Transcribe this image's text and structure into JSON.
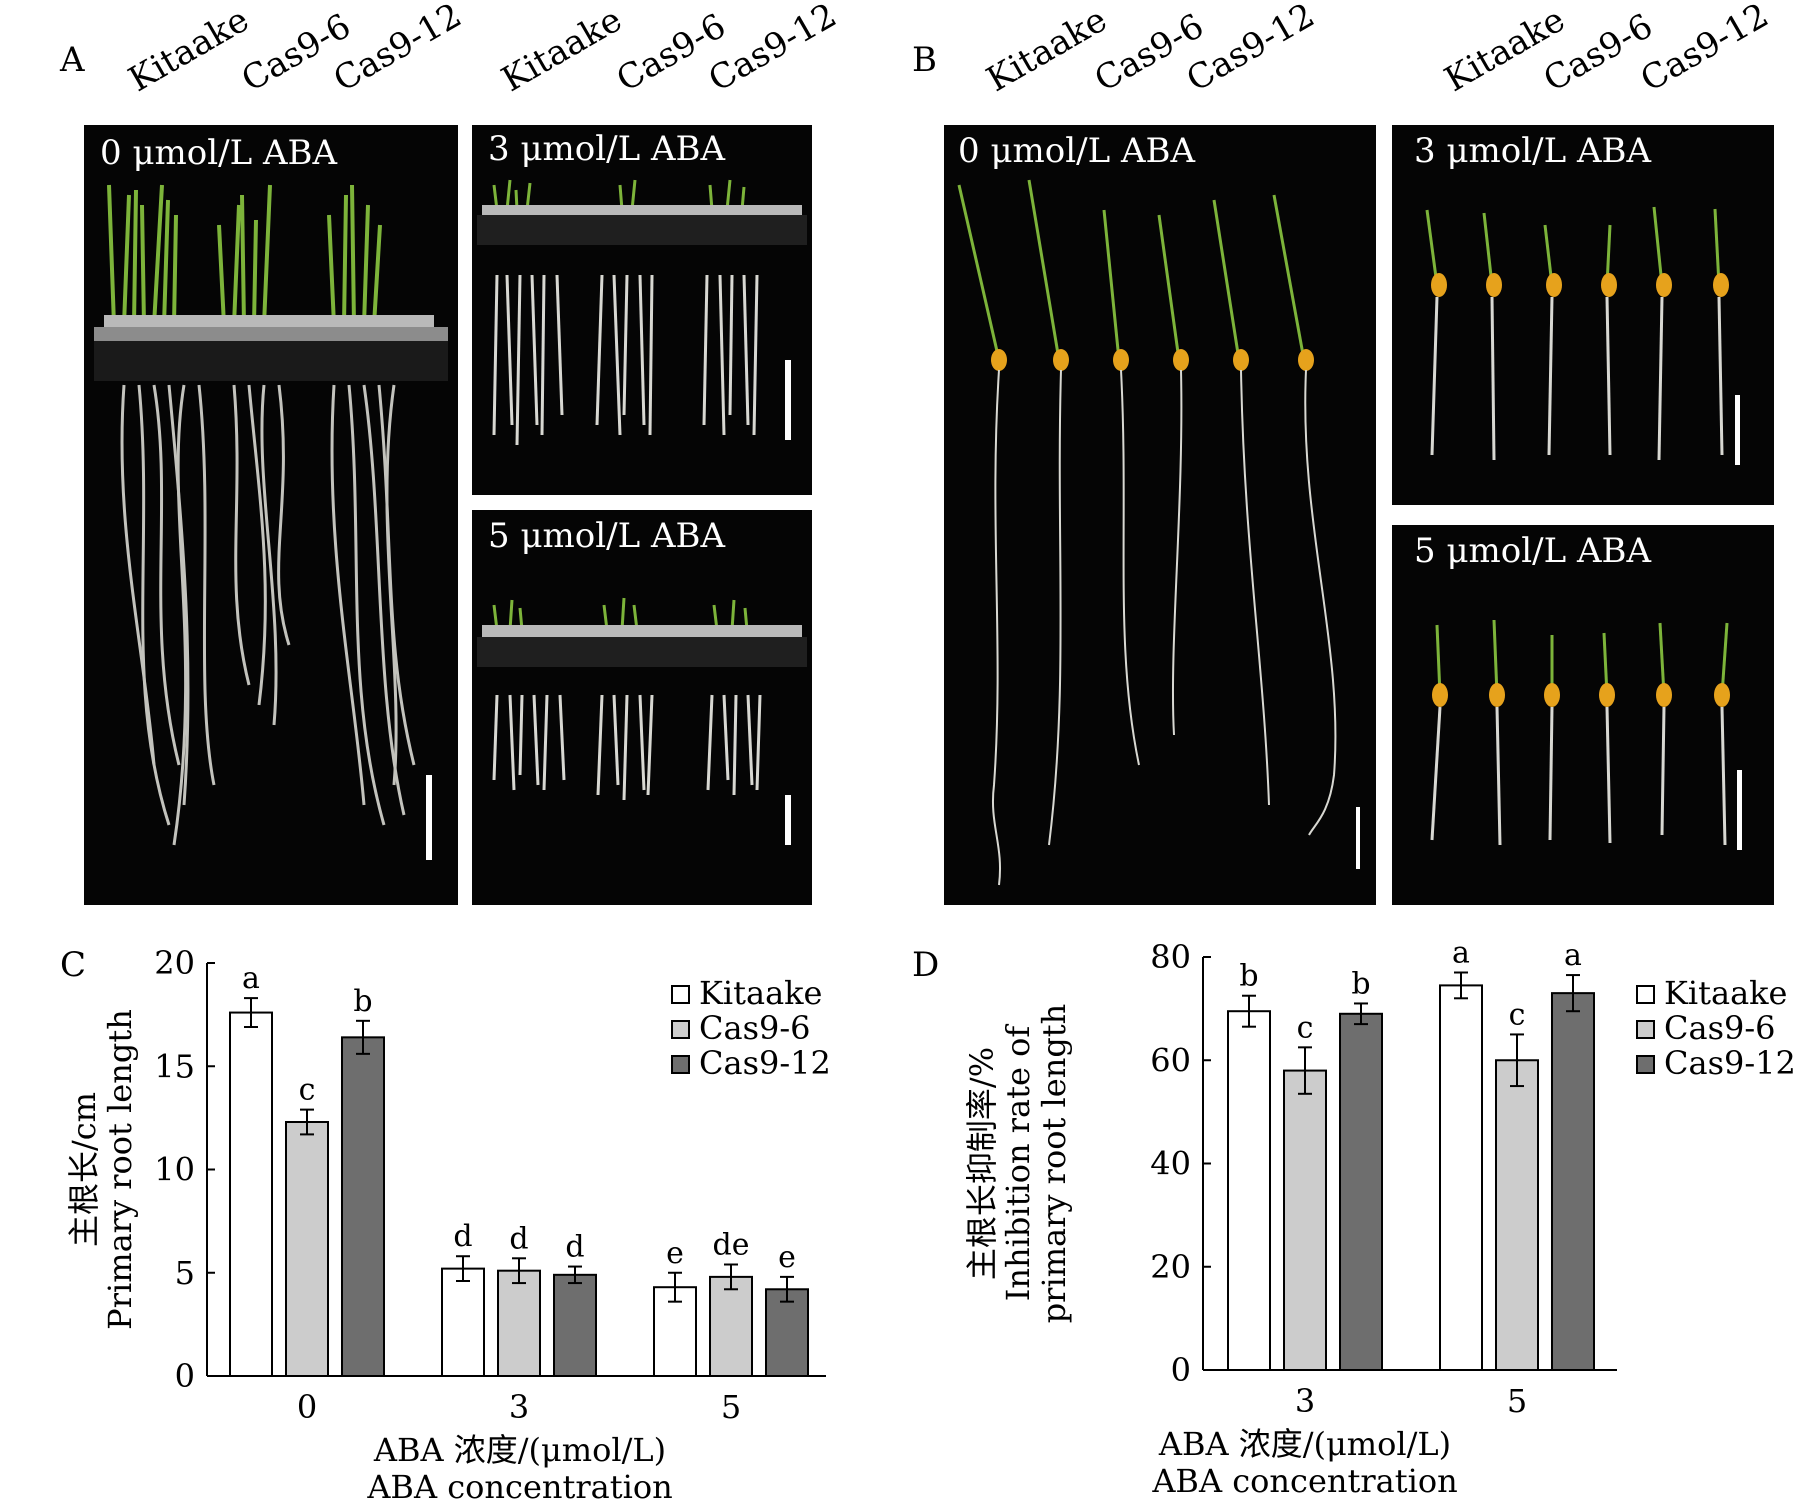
{
  "panels": {
    "A": {
      "label": "A",
      "genotype_labels_left": [
        "Kitaake",
        "Cas9-6",
        "Cas9-12"
      ],
      "genotype_labels_right": [
        "Kitaake",
        "Cas9-6",
        "Cas9-12"
      ],
      "conditions": [
        "0 μmol/L ABA",
        "3 μmol/L ABA",
        "5 μmol/L ABA"
      ]
    },
    "B": {
      "label": "B",
      "genotype_labels_left": [
        "Kitaake",
        "Cas9-6",
        "Cas9-12"
      ],
      "genotype_labels_right": [
        "Kitaake",
        "Cas9-6",
        "Cas9-12"
      ],
      "conditions": [
        "0 μmol/L ABA",
        "3 μmol/L ABA",
        "5 μmol/L ABA"
      ]
    },
    "C": {
      "label": "C"
    },
    "D": {
      "label": "D"
    }
  },
  "colors": {
    "Kitaake": "#ffffff",
    "Cas9-6": "#cccccc",
    "Cas9-12": "#6e6e6e",
    "photo_bg": "#050505",
    "leaf": "#7db43a",
    "root": "#d8d8d2",
    "seed": "#e6a21c"
  },
  "chart_data": [
    {
      "type": "bar",
      "panel": "C",
      "categories": [
        "0",
        "3",
        "5"
      ],
      "series": [
        {
          "name": "Kitaake",
          "values": [
            17.6,
            5.2,
            4.3
          ],
          "errors": [
            0.7,
            0.6,
            0.7
          ],
          "letters": [
            "a",
            "d",
            "e"
          ]
        },
        {
          "name": "Cas9-6",
          "values": [
            12.3,
            5.1,
            4.8
          ],
          "errors": [
            0.6,
            0.6,
            0.6
          ],
          "letters": [
            "c",
            "d",
            "de"
          ]
        },
        {
          "name": "Cas9-12",
          "values": [
            16.4,
            4.9,
            4.2
          ],
          "errors": [
            0.8,
            0.4,
            0.6
          ],
          "letters": [
            "b",
            "d",
            "e"
          ]
        }
      ],
      "ylim": [
        0,
        20
      ],
      "yticks": [
        "0",
        "5",
        "10",
        "15",
        "20"
      ],
      "ylabel_lines": [
        "主根长/cm",
        "Primary root length"
      ],
      "xlabel_lines": [
        "ABA 浓度/(μmol/L)",
        "ABA concentration"
      ],
      "legend": [
        "Kitaake",
        "Cas9-6",
        "Cas9-12"
      ],
      "legend_position": "top-right"
    },
    {
      "type": "bar",
      "panel": "D",
      "categories": [
        "3",
        "5"
      ],
      "series": [
        {
          "name": "Kitaake",
          "values": [
            69.5,
            74.5
          ],
          "errors": [
            3.0,
            2.5
          ],
          "letters": [
            "b",
            "a"
          ]
        },
        {
          "name": "Cas9-6",
          "values": [
            58.0,
            60.0
          ],
          "errors": [
            4.5,
            5.0
          ],
          "letters": [
            "c",
            "c"
          ]
        },
        {
          "name": "Cas9-12",
          "values": [
            69.0,
            73.0
          ],
          "errors": [
            2.0,
            3.5
          ],
          "letters": [
            "b",
            "a"
          ]
        }
      ],
      "ylim": [
        0,
        80
      ],
      "yticks": [
        "0",
        "20",
        "40",
        "60",
        "80"
      ],
      "ylabel_lines": [
        "主根长抑制率/%",
        "Inhibition rate of",
        "primary root length"
      ],
      "xlabel_lines": [
        "ABA 浓度/(μmol/L)",
        "ABA concentration"
      ],
      "legend": [
        "Kitaake",
        "Cas9-6",
        "Cas9-12"
      ],
      "legend_position": "top-right"
    }
  ]
}
